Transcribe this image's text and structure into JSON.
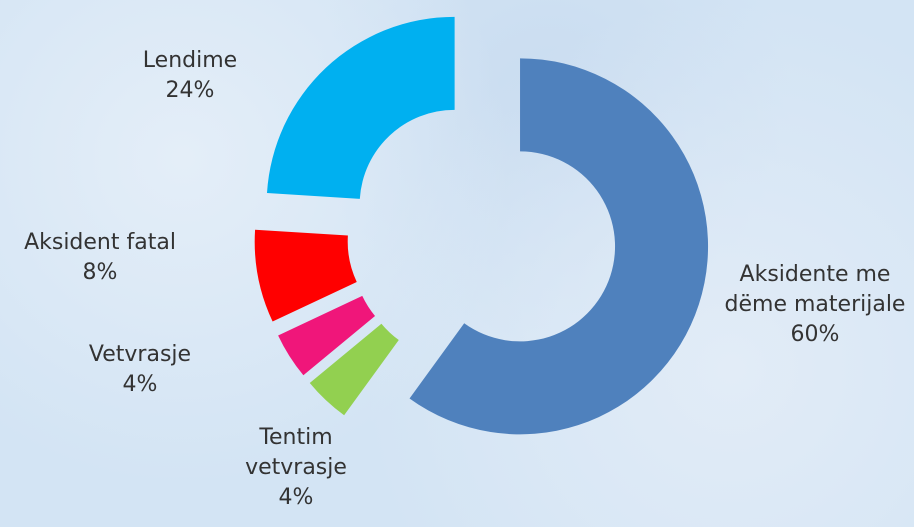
{
  "chart_data": {
    "type": "donut",
    "categories": [
      "Aksidente me dëme materijale",
      "Tentim vetvrasje",
      "Vetvrasje",
      "Aksident fatal",
      "Lendime"
    ],
    "values": [
      60,
      4,
      4,
      8,
      24
    ],
    "value_labels": [
      "60%",
      "4%",
      "4%",
      "8%",
      "24%"
    ],
    "colors": [
      "#4f81bd",
      "#92d050",
      "#f0167a",
      "#ff0000",
      "#00b0f0"
    ]
  }
}
